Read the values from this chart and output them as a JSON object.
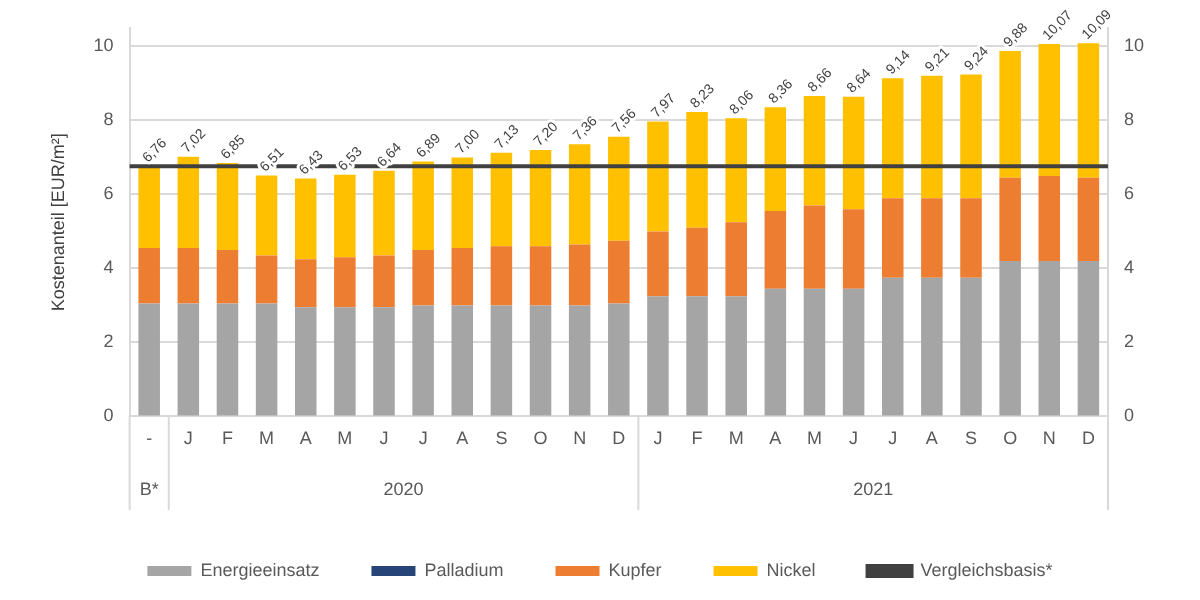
{
  "chart_data": {
    "type": "bar",
    "stacked": true,
    "ylabel": "Kostenanteil [EUR/m²]",
    "categories": [
      "-",
      "J",
      "F",
      "M",
      "A",
      "M",
      "J",
      "J",
      "A",
      "S",
      "O",
      "N",
      "D",
      "J",
      "F",
      "M",
      "A",
      "M",
      "J",
      "J",
      "A",
      "S",
      "O",
      "N",
      "D"
    ],
    "annotations": [
      "B*",
      "2020",
      "2021"
    ],
    "series": [
      {
        "name": "Energieeinsatz",
        "color": "#a5a5a5",
        "values": [
          3.05,
          3.05,
          3.05,
          3.05,
          2.95,
          2.95,
          2.95,
          3.0,
          3.0,
          3.0,
          3.0,
          3.0,
          3.05,
          3.25,
          3.25,
          3.25,
          3.45,
          3.45,
          3.45,
          3.75,
          3.75,
          3.75,
          4.2,
          4.2,
          4.2
        ]
      },
      {
        "name": "Palladium",
        "color": "#264478",
        "values": [
          0,
          0,
          0,
          0,
          0,
          0,
          0,
          0,
          0,
          0,
          0,
          0,
          0,
          0,
          0,
          0,
          0,
          0,
          0,
          0,
          0,
          0,
          0,
          0,
          0
        ]
      },
      {
        "name": "Kupfer",
        "color": "#ed7d31",
        "values": [
          1.5,
          1.5,
          1.45,
          1.3,
          1.3,
          1.35,
          1.4,
          1.5,
          1.55,
          1.6,
          1.6,
          1.65,
          1.7,
          1.75,
          1.85,
          2.0,
          2.1,
          2.25,
          2.15,
          2.15,
          2.15,
          2.15,
          2.25,
          2.3,
          2.25
        ]
      },
      {
        "name": "Nickel",
        "color": "#ffc000",
        "values": [
          2.21,
          2.47,
          2.35,
          2.16,
          2.18,
          2.23,
          2.29,
          2.39,
          2.45,
          2.53,
          2.6,
          2.71,
          2.81,
          2.97,
          3.13,
          2.81,
          2.81,
          2.96,
          3.04,
          3.24,
          3.31,
          3.34,
          3.43,
          3.57,
          3.64
        ]
      }
    ],
    "totals": [
      "6,76",
      "7,02",
      "6,85",
      "6,51",
      "6,43",
      "6,53",
      "6,64",
      "6,89",
      "7,00",
      "7,13",
      "7,20",
      "7,36",
      "7,56",
      "7,97",
      "8,23",
      "8,06",
      "8,36",
      "8,66",
      "8,64",
      "9,14",
      "9,21",
      "9,24",
      "9,88",
      "10,07",
      "10,09"
    ],
    "ref_lines": [
      {
        "axis": "y",
        "value": 6.76,
        "label": "Vergleichsbasis*",
        "color": "#404040"
      }
    ],
    "ylim": [
      0,
      10.5
    ],
    "yticks": [
      0,
      2,
      4,
      6,
      8,
      10
    ],
    "y2lim": [
      0,
      10.5
    ],
    "y2ticks": [
      0,
      2,
      4,
      6,
      8,
      10
    ],
    "grid": "y",
    "legend": "bottom"
  }
}
